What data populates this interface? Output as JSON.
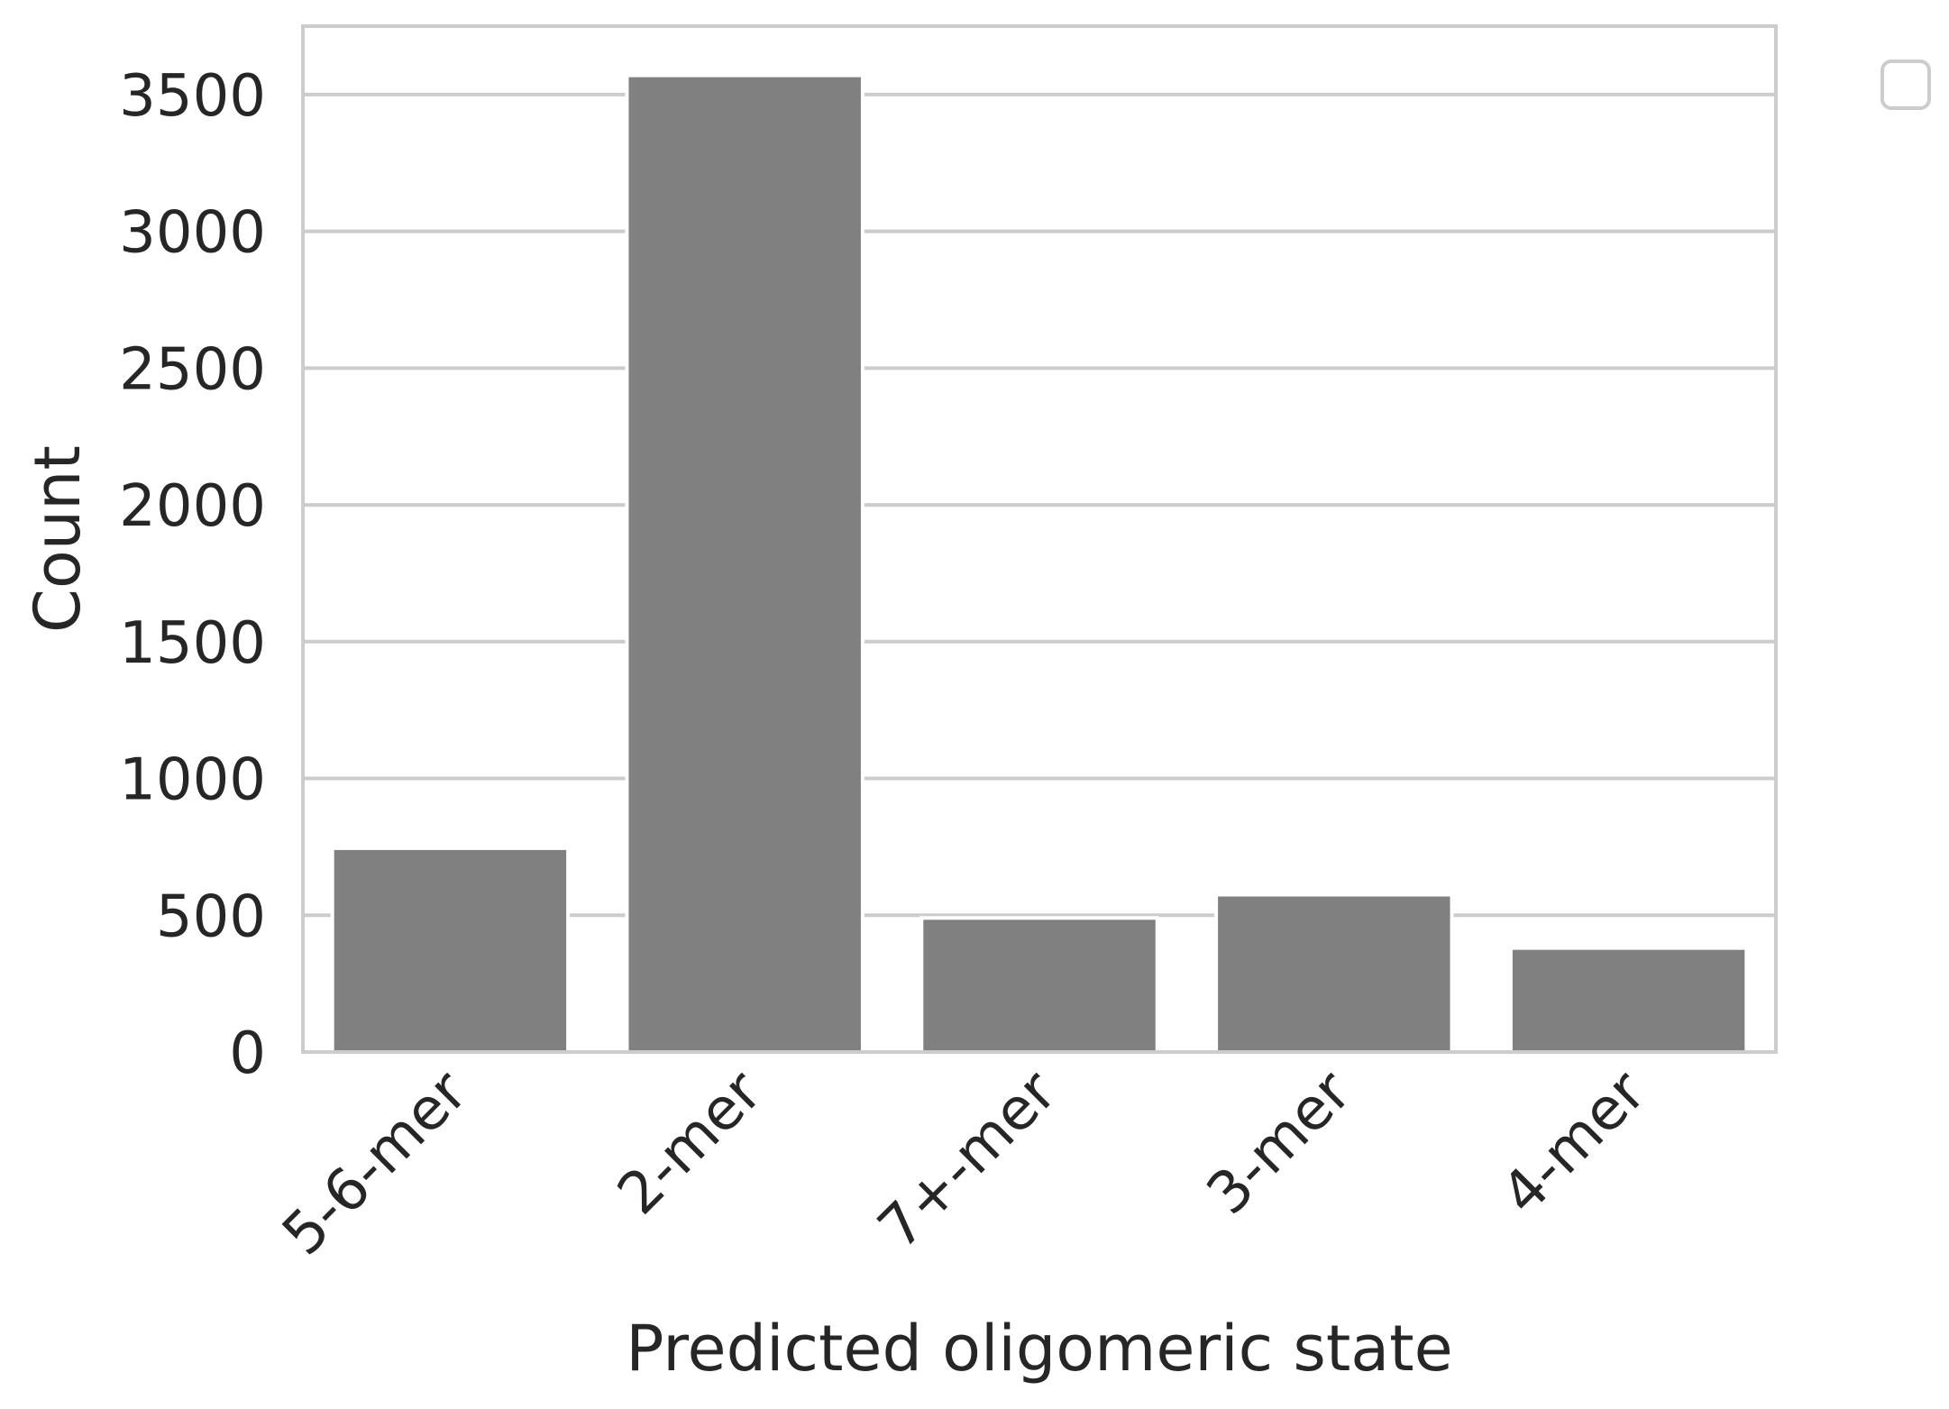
{
  "chart_data": {
    "type": "bar",
    "title": "",
    "xlabel": "Predicted oligomeric state",
    "ylabel": "Count",
    "categories": [
      "5-6-mer",
      "2-mer",
      "7+-mer",
      "3-mer",
      "4-mer"
    ],
    "values": [
      745,
      3570,
      490,
      575,
      380
    ],
    "ylim": [
      0,
      3750
    ],
    "yticks": [
      0,
      500,
      1000,
      1500,
      2000,
      2500,
      3000,
      3500
    ],
    "ytick_labels": [
      "0",
      "500",
      "1000",
      "1500",
      "2000",
      "2500",
      "3000",
      "3500"
    ],
    "grid": "horizontal",
    "legend": "outside-top-right, empty",
    "colors": {
      "bar": "#808080",
      "grid": "#cccccc",
      "frame": "#cccccc",
      "text": "#262626",
      "background": "#ffffff"
    }
  }
}
